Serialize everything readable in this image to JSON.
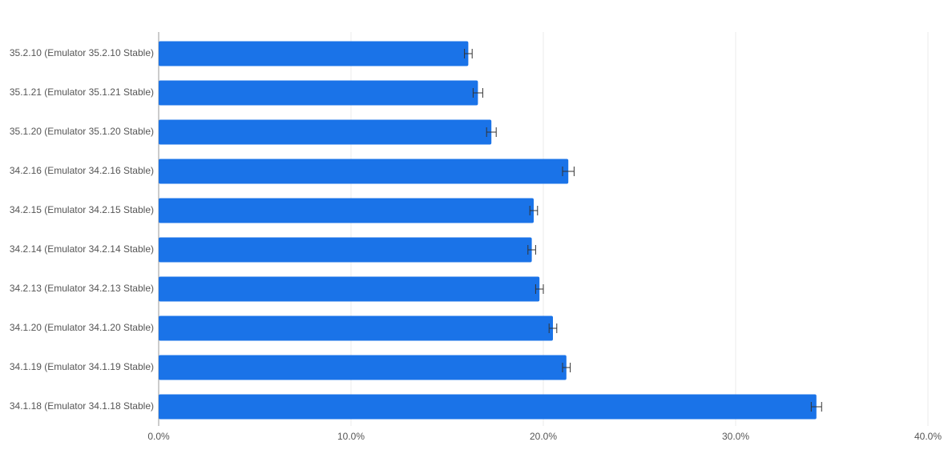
{
  "chart_data": {
    "type": "bar",
    "orientation": "horizontal",
    "categories": [
      "35.2.10 (Emulator 35.2.10 Stable)",
      "35.1.21 (Emulator 35.1.21 Stable)",
      "35.1.20 (Emulator 35.1.20 Stable)",
      "34.2.16 (Emulator 34.2.16 Stable)",
      "34.2.15 (Emulator 34.2.15 Stable)",
      "34.2.14 (Emulator 34.2.14 Stable)",
      "34.2.13 (Emulator 34.2.13 Stable)",
      "34.1.20 (Emulator 34.1.20 Stable)",
      "34.1.19 (Emulator 34.1.19 Stable)",
      "34.1.18 (Emulator 34.1.18 Stable)"
    ],
    "values": [
      16.1,
      16.6,
      17.3,
      21.3,
      19.5,
      19.4,
      19.8,
      20.5,
      21.2,
      34.2
    ],
    "errors": [
      0.2,
      0.25,
      0.25,
      0.3,
      0.2,
      0.2,
      0.2,
      0.2,
      0.2,
      0.27
    ],
    "color": "#1a73e8",
    "xlim": [
      0,
      40
    ],
    "xticks": [
      {
        "value": 0,
        "label": "0.0%"
      },
      {
        "value": 10,
        "label": "10.0%"
      },
      {
        "value": 20,
        "label": "20.0%"
      },
      {
        "value": 30,
        "label": "30.0%"
      },
      {
        "value": 40,
        "label": "40.0%"
      }
    ],
    "grid": true
  }
}
